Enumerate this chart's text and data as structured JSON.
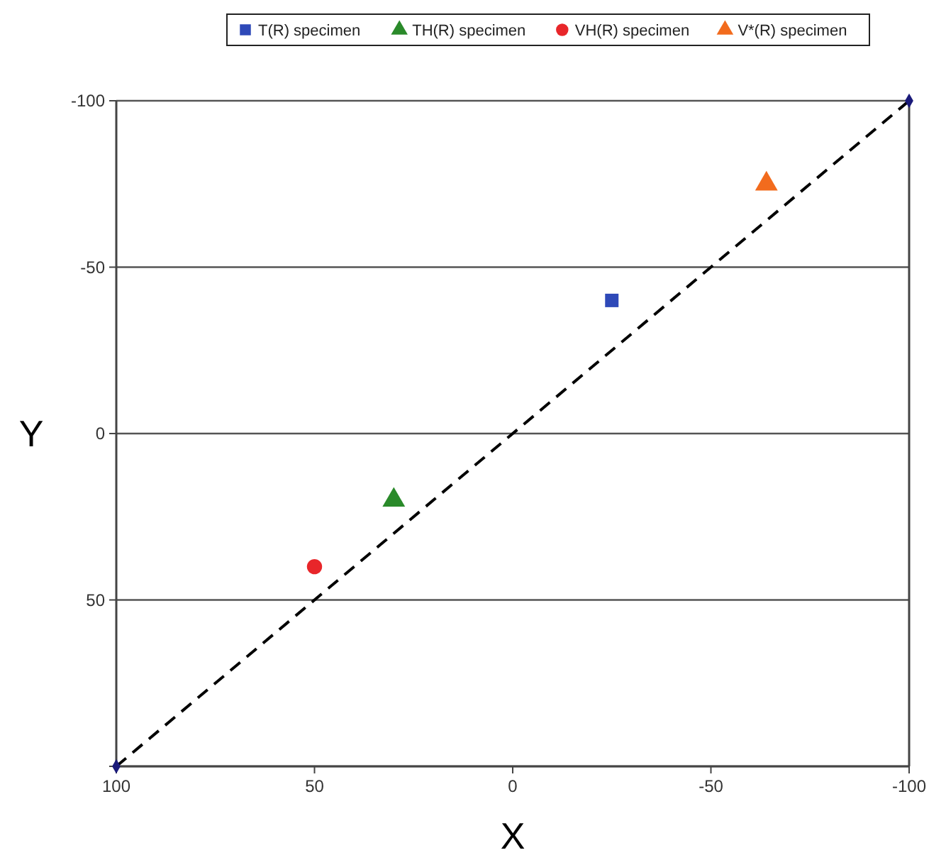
{
  "chart_data": {
    "type": "scatter",
    "xlabel": "X",
    "ylabel": "Y",
    "xlim": [
      100,
      -100
    ],
    "ylim": [
      100,
      -100
    ],
    "xticks": [
      100,
      50,
      0,
      -50,
      -100
    ],
    "yticks": [
      -100,
      -50,
      0,
      50,
      {
        "value": 100,
        "label": null
      }
    ],
    "grid": "y",
    "legend": "top",
    "series": [
      {
        "name": "T(R) specimen",
        "color": "#2e49b8",
        "marker": "square",
        "x": [
          -25
        ],
        "values": [
          -40
        ]
      },
      {
        "name": "TH(R) specimen",
        "color": "#2a8a2a",
        "marker": "triangle",
        "x": [
          30
        ],
        "values": [
          20
        ]
      },
      {
        "name": "VH(R) specimen",
        "color": "#e8262a",
        "marker": "circle",
        "x": [
          50
        ],
        "values": [
          40
        ]
      },
      {
        "name": "V*(R) specimen",
        "color": "#f26b1d",
        "marker": "triangle",
        "x": [
          -64
        ],
        "values": [
          -75
        ]
      },
      {
        "type": "line",
        "color": "#000000",
        "marker": "diamond",
        "line_style": "dashed",
        "x": [
          100,
          -100
        ],
        "values": [
          100,
          -100
        ]
      }
    ]
  }
}
